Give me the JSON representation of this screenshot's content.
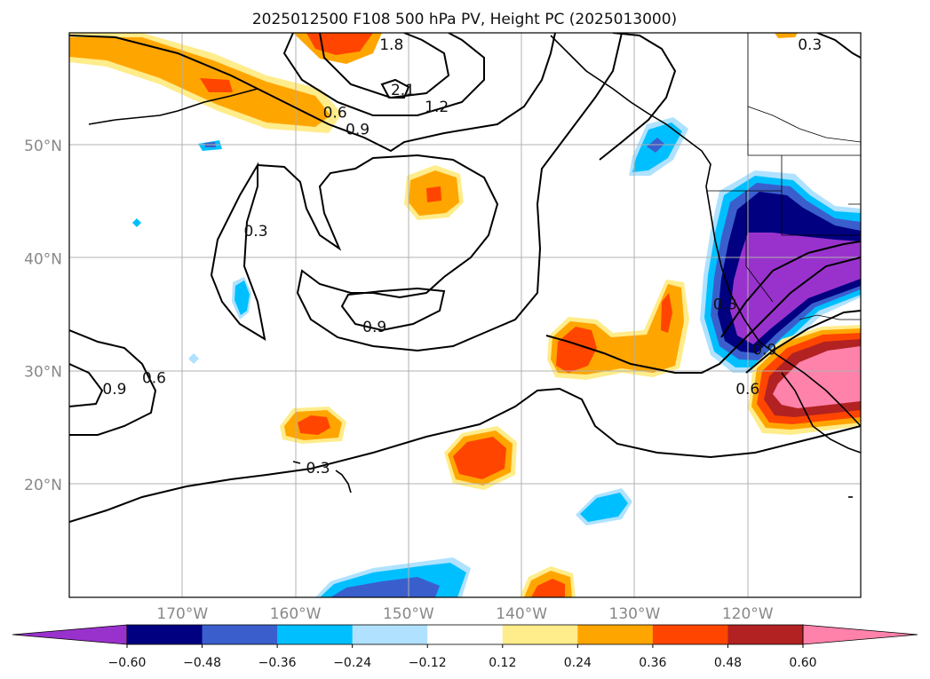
{
  "title": "2025012500 F108 500 hPa PV, Height PC (2025013000)",
  "chart_data": {
    "type": "filled-contour map",
    "title": "2025012500 F108 500 hPa PV, Height PC (2025013000)",
    "projection": "lat-lon",
    "lon_range": [
      -180,
      -110
    ],
    "lat_range": [
      10,
      60
    ],
    "grid": true,
    "x_ticks": [
      "170°W",
      "160°W",
      "150°W",
      "140°W",
      "130°W",
      "120°W"
    ],
    "x_tick_values": [
      -170,
      -160,
      -150,
      -140,
      -130,
      -120
    ],
    "y_ticks": [
      "20°N",
      "30°N",
      "40°N",
      "50°N"
    ],
    "y_tick_values": [
      20,
      30,
      40,
      50
    ],
    "colorbar": {
      "extend": "both",
      "levels": [
        -0.6,
        -0.48,
        -0.36,
        -0.24,
        -0.12,
        0.12,
        0.24,
        0.36,
        0.48,
        0.6
      ],
      "tick_labels": [
        "−0.60",
        "−0.48",
        "−0.36",
        "−0.24",
        "−0.12",
        "0.12",
        "0.24",
        "0.36",
        "0.48",
        "0.60"
      ],
      "colors": [
        "#9932cc",
        "#000080",
        "#3a5fcd",
        "#00bfff",
        "#b0e2ff",
        "#ffffff",
        "#ffec8b",
        "#ffa500",
        "#ff4500",
        "#b22222",
        "#ff82ab"
      ]
    },
    "contour_labels": [
      {
        "text": "1.8",
        "lon": -151.5,
        "lat": 58.5
      },
      {
        "text": "2.1",
        "lon": -150.5,
        "lat": 54.5
      },
      {
        "text": "1.2",
        "lon": -147.5,
        "lat": 53.0
      },
      {
        "text": "0.6",
        "lon": -156.5,
        "lat": 52.5
      },
      {
        "text": "0.9",
        "lon": -154.5,
        "lat": 51.0
      },
      {
        "text": "0.3",
        "lon": -163.5,
        "lat": 42.0
      },
      {
        "text": "0.9",
        "lon": -153.0,
        "lat": 33.5
      },
      {
        "text": "0.6",
        "lon": -172.5,
        "lat": 29.0
      },
      {
        "text": "0.9",
        "lon": -176.0,
        "lat": 28.0
      },
      {
        "text": "0.3",
        "lon": -158.0,
        "lat": 21.0
      },
      {
        "text": "0.3",
        "lon": -114.5,
        "lat": 58.5
      },
      {
        "text": "0.3",
        "lon": -122.0,
        "lat": 35.5
      },
      {
        "text": "0.9",
        "lon": -118.5,
        "lat": 31.5
      },
      {
        "text": "0.6",
        "lon": -120.0,
        "lat": 28.0
      }
    ]
  }
}
